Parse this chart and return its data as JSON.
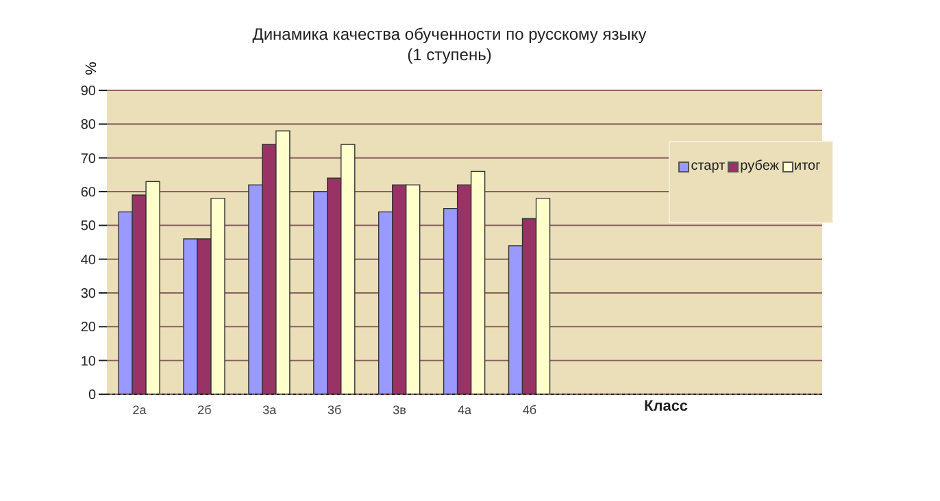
{
  "chart_data": {
    "type": "bar",
    "title": "Динамика качества обученности по русскому языку",
    "subtitle": "(1 ступень)",
    "xlabel": "Класс",
    "ylabel": "%",
    "categories": [
      "2а",
      "2б",
      "3а",
      "3б",
      "3в",
      "4а",
      "4б",
      null,
      null,
      null,
      null
    ],
    "series": [
      {
        "name": "старт",
        "color": "#9999ff",
        "values": [
          54,
          46,
          62,
          60,
          54,
          55,
          44,
          null,
          null,
          null,
          null
        ]
      },
      {
        "name": "рубеж",
        "color": "#993366",
        "values": [
          59,
          46,
          74,
          64,
          62,
          62,
          52,
          null,
          null,
          null,
          null
        ]
      },
      {
        "name": "итог",
        "color": "#ffffcc",
        "values": [
          63,
          58,
          78,
          74,
          62,
          66,
          58,
          null,
          null,
          null,
          null
        ]
      }
    ],
    "ylim": [
      0,
      90
    ],
    "yticks": [
      0,
      10,
      20,
      30,
      40,
      50,
      60,
      70,
      80,
      90
    ],
    "grid": "y",
    "legend": "top right"
  }
}
